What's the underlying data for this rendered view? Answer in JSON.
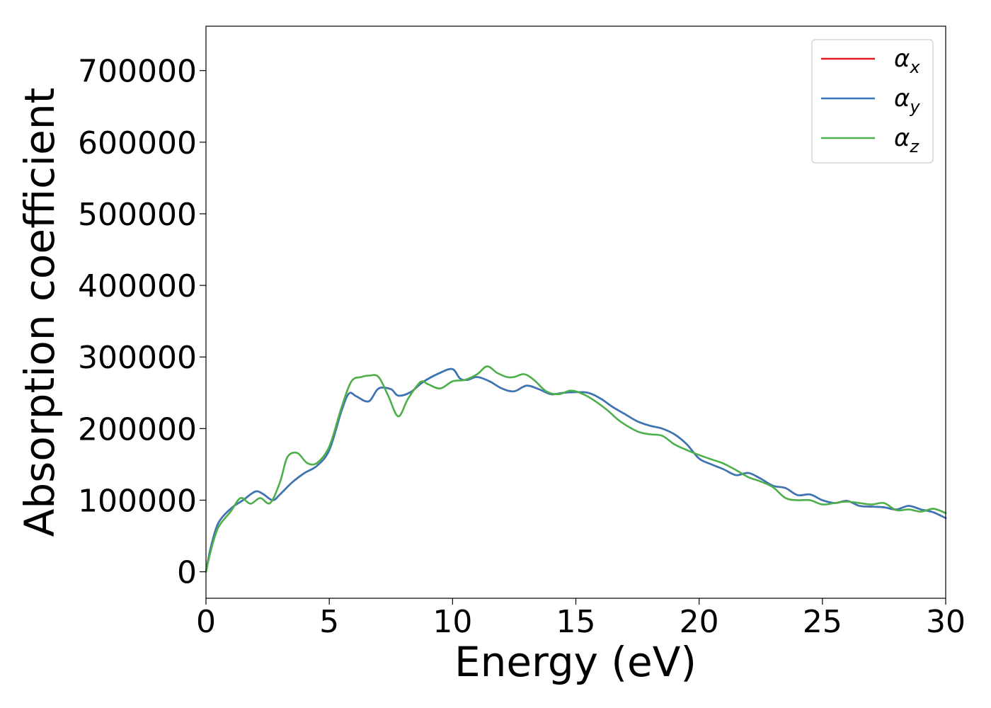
{
  "chart_data": {
    "type": "line",
    "title": "",
    "xlabel": "Energy (eV)",
    "ylabel": "Absorption coefficient",
    "xlim": [
      0,
      30
    ],
    "ylim": [
      -37000,
      762000
    ],
    "xticks": [
      0,
      5,
      10,
      15,
      20,
      25,
      30
    ],
    "yticks": [
      0,
      100000,
      200000,
      300000,
      400000,
      500000,
      600000,
      700000
    ],
    "grid": false,
    "legend_position": "top-right",
    "series": [
      {
        "name": "α",
        "subscript": "x",
        "color": "#e41a1c",
        "x": [
          0,
          0.2,
          0.5,
          1,
          1.5,
          2,
          2.3,
          2.7,
          3,
          3.5,
          4,
          4.5,
          5,
          5.5,
          5.8,
          6.1,
          6.6,
          7,
          7.5,
          7.8,
          8.3,
          8.8,
          9.5,
          10,
          10.3,
          10.6,
          11,
          11.5,
          12,
          12.5,
          13,
          13.5,
          14,
          14.5,
          15,
          15.5,
          16,
          16.5,
          17,
          17.5,
          18,
          18.5,
          19,
          19.5,
          20,
          20.5,
          21,
          21.5,
          22,
          22.5,
          23,
          23.5,
          24,
          24.5,
          25,
          25.5,
          26,
          26.5,
          27,
          27.5,
          28,
          28.5,
          29,
          29.5,
          30
        ],
        "y": [
          0,
          35000,
          68000,
          88000,
          100000,
          112000,
          109000,
          100000,
          108000,
          125000,
          138000,
          148000,
          170000,
          225000,
          249000,
          245000,
          238000,
          256000,
          255000,
          246000,
          251000,
          265000,
          278000,
          283000,
          270000,
          268000,
          272000,
          266000,
          256000,
          252000,
          260000,
          255000,
          248000,
          250000,
          251000,
          250000,
          242000,
          230000,
          220000,
          210000,
          204000,
          200000,
          192000,
          178000,
          158000,
          150000,
          143000,
          135000,
          138000,
          130000,
          120000,
          117000,
          107000,
          108000,
          100000,
          96000,
          99000,
          92000,
          91000,
          90000,
          87000,
          92000,
          87000,
          83000,
          75000
        ]
      },
      {
        "name": "α",
        "subscript": "y",
        "color": "#3778b8",
        "x": [
          0,
          0.2,
          0.5,
          1,
          1.5,
          2,
          2.3,
          2.7,
          3,
          3.5,
          4,
          4.5,
          5,
          5.5,
          5.8,
          6.1,
          6.6,
          7,
          7.5,
          7.8,
          8.3,
          8.8,
          9.5,
          10,
          10.3,
          10.6,
          11,
          11.5,
          12,
          12.5,
          13,
          13.5,
          14,
          14.5,
          15,
          15.5,
          16,
          16.5,
          17,
          17.5,
          18,
          18.5,
          19,
          19.5,
          20,
          20.5,
          21,
          21.5,
          22,
          22.5,
          23,
          23.5,
          24,
          24.5,
          25,
          25.5,
          26,
          26.5,
          27,
          27.5,
          28,
          28.5,
          29,
          29.5,
          30
        ],
        "y": [
          0,
          35000,
          68000,
          88000,
          100000,
          112000,
          109000,
          100000,
          108000,
          125000,
          138000,
          148000,
          170000,
          225000,
          249000,
          245000,
          238000,
          256000,
          255000,
          246000,
          251000,
          265000,
          278000,
          283000,
          270000,
          268000,
          272000,
          266000,
          256000,
          252000,
          260000,
          255000,
          248000,
          250000,
          251000,
          250000,
          242000,
          230000,
          220000,
          210000,
          204000,
          200000,
          192000,
          178000,
          158000,
          150000,
          143000,
          135000,
          138000,
          130000,
          120000,
          117000,
          107000,
          108000,
          100000,
          96000,
          99000,
          92000,
          91000,
          90000,
          87000,
          92000,
          87000,
          83000,
          75000
        ]
      },
      {
        "name": "α",
        "subscript": "z",
        "color": "#4daf4a",
        "x": [
          0,
          0.2,
          0.5,
          1,
          1.4,
          1.8,
          2.2,
          2.6,
          3,
          3.3,
          3.7,
          4.1,
          4.5,
          5,
          5.5,
          5.9,
          6.3,
          6.6,
          7,
          7.4,
          7.8,
          8.2,
          8.7,
          9,
          9.5,
          10,
          10.5,
          11,
          11.4,
          11.8,
          12.2,
          12.5,
          12.9,
          13.3,
          13.8,
          14.3,
          14.8,
          15.3,
          15.8,
          16.3,
          16.8,
          17.5,
          18,
          18.5,
          19,
          19.5,
          20,
          20.5,
          21,
          21.5,
          22,
          22.5,
          23,
          23.5,
          24,
          24.5,
          25,
          25.5,
          26,
          26.5,
          27,
          27.5,
          28,
          28.5,
          29,
          29.5,
          30
        ],
        "y": [
          0,
          30000,
          62000,
          84000,
          103000,
          95000,
          103000,
          96000,
          125000,
          160000,
          166000,
          152000,
          152000,
          175000,
          230000,
          266000,
          272000,
          274000,
          272000,
          245000,
          217000,
          242000,
          265000,
          262000,
          256000,
          266000,
          268000,
          276000,
          287000,
          278000,
          272000,
          272000,
          276000,
          268000,
          252000,
          248000,
          253000,
          248000,
          238000,
          225000,
          210000,
          196000,
          192000,
          190000,
          178000,
          170000,
          163000,
          157000,
          151000,
          142000,
          132000,
          126000,
          118000,
          103000,
          100000,
          100000,
          94000,
          96000,
          98000,
          96000,
          94000,
          96000,
          86000,
          87000,
          84000,
          88000,
          82000
        ]
      }
    ]
  }
}
